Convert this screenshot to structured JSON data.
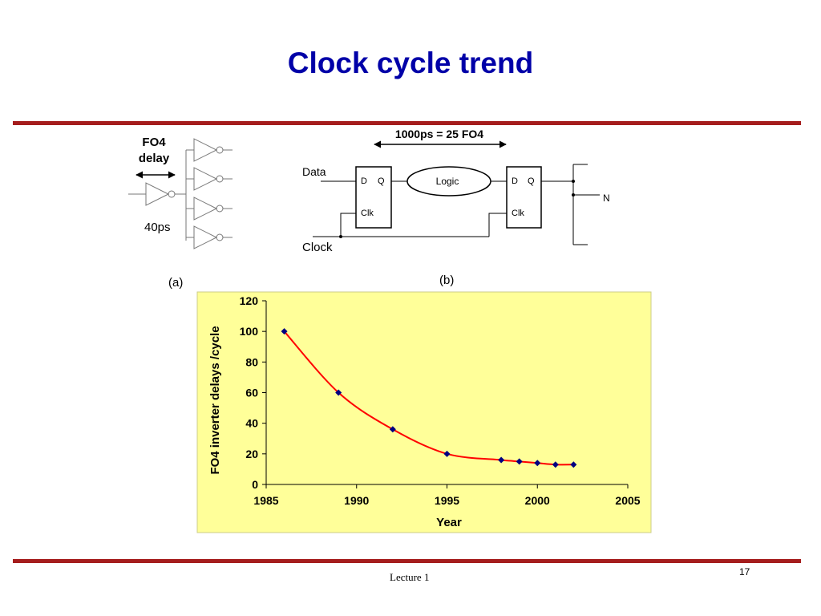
{
  "slide": {
    "title": "Clock cycle trend",
    "footer_left": "Lecture 1",
    "page_number": "17"
  },
  "colors": {
    "title": "#0000a8",
    "rule": "#a51d1d",
    "plot_bg": "#ffff99",
    "line": "#ff0000",
    "marker": "#000080"
  },
  "fig_a": {
    "label": "(a)",
    "title_line1": "FO4",
    "title_line2": "delay",
    "delay": "40ps"
  },
  "fig_b": {
    "label": "(b)",
    "span_label": "1000ps = 25 FO4",
    "data_label": "Data",
    "clock_label": "Clock",
    "ff1": {
      "d": "D",
      "q": "Q",
      "clk": "Clk"
    },
    "ff2": {
      "d": "D",
      "q": "Q",
      "clk": "Clk"
    },
    "logic_label": "Logic",
    "fanout_label": "N"
  },
  "chart_data": {
    "type": "line",
    "xlabel": "Year",
    "ylabel": "FO4 inverter delays /cycle",
    "xlim": [
      1985,
      2005
    ],
    "ylim": [
      0,
      120
    ],
    "x_ticks": [
      1985,
      1990,
      1995,
      2000,
      2005
    ],
    "y_ticks": [
      0,
      20,
      40,
      60,
      80,
      100,
      120
    ],
    "grid": false,
    "legend": "none",
    "x": [
      1986,
      1989,
      1992,
      1995,
      1998,
      1999,
      2000,
      2001,
      2002
    ],
    "y": [
      100,
      60,
      36,
      20,
      16,
      15,
      14,
      13,
      13
    ]
  }
}
